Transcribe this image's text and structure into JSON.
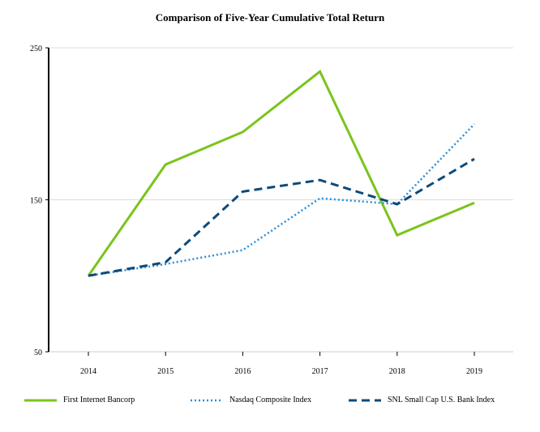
{
  "chart_data": {
    "type": "line",
    "title": "Comparison of Five-Year Cumulative Total Return",
    "xlabel": "",
    "ylabel": "",
    "categories": [
      "2014",
      "2015",
      "2016",
      "2017",
      "2018",
      "2019"
    ],
    "ylim": [
      50,
      250
    ],
    "yticks": [
      50,
      150,
      250
    ],
    "grid": true,
    "legend_position": "bottom",
    "series": [
      {
        "name": "First Internet Bancorp",
        "color": "#7ac41c",
        "style": "solid",
        "values": [
          100,
          173.2,
          194.6,
          234.4,
          126.7,
          148.0
        ]
      },
      {
        "name": "Nasdaq Composite Index",
        "color": "#2a8fd8",
        "style": "dotted",
        "values": [
          100,
          107.7,
          116.9,
          151.0,
          147.1,
          199.8
        ]
      },
      {
        "name": "SNL Small Cap U.S. Bank Index",
        "color": "#0d4a7a",
        "style": "dashed",
        "values": [
          100,
          108.9,
          155.4,
          163.0,
          147.1,
          176.9
        ]
      }
    ]
  }
}
